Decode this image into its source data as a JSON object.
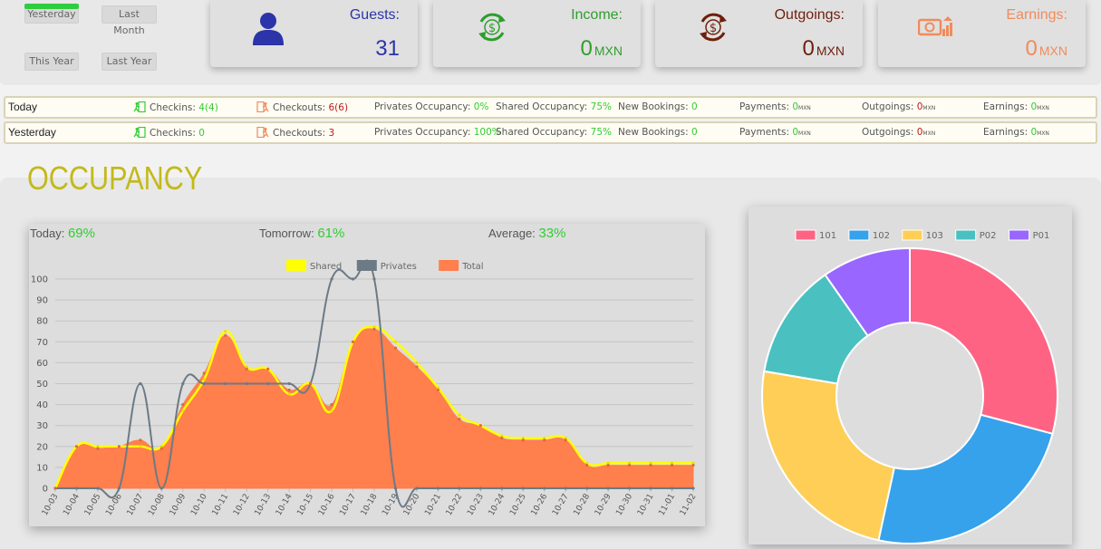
{
  "periods": {
    "yesterday": "Yesterday",
    "last_month": "Last Month",
    "this_year": "This Year",
    "last_year": "Last Year"
  },
  "cards": {
    "guests": {
      "label": "Guests:",
      "value": "31",
      "icon": "user-icon",
      "color": "#2b34a8"
    },
    "income": {
      "label": "Income:",
      "value": "0",
      "unit": "MXN",
      "icon": "dollar-cycle-icon",
      "color": "#2e9e2e"
    },
    "outgoings": {
      "label": "Outgoings:",
      "value": "0",
      "unit": "MXN",
      "icon": "dollar-cycle-icon",
      "color": "#6e1f0c"
    },
    "earnings": {
      "label": "Earnings:",
      "value": "0",
      "unit": "MXN",
      "icon": "money-chart-icon",
      "color": "#f08b5c"
    }
  },
  "summary": [
    {
      "day": "Today",
      "checkins_label": "Checkins:",
      "checkins": "4(4)",
      "checkouts_label": "Checkouts:",
      "checkouts": "6(6)",
      "privates_label": "Privates Occupancy:",
      "privates": "0%",
      "shared_label": "Shared Occupancy:",
      "shared": "75%",
      "bookings_label": "New Bookings:",
      "bookings": "0",
      "payments_label": "Payments:",
      "payments": "0",
      "payments_unit": "MXN",
      "outgoings_label": "Outgoings:",
      "outgoings": "0",
      "outgoings_unit": "MXN",
      "earnings_label": "Earnings:",
      "earnings": "0",
      "earnings_unit": "MXN"
    },
    {
      "day": "Yesterday",
      "checkins_label": "Checkins:",
      "checkins": "0",
      "checkouts_label": "Checkouts:",
      "checkouts": "3",
      "privates_label": "Privates Occupancy:",
      "privates": "100%",
      "shared_label": "Shared Occupancy:",
      "shared": "75%",
      "bookings_label": "New Bookings:",
      "bookings": "0",
      "payments_label": "Payments:",
      "payments": "0",
      "payments_unit": "MXN",
      "outgoings_label": "Outgoings:",
      "outgoings": "0",
      "outgoings_unit": "MXN",
      "earnings_label": "Earnings:",
      "earnings": "0",
      "earnings_unit": "MXN"
    }
  ],
  "occupancy": {
    "title": "OCCUPANCY",
    "today_label": "Today:",
    "today": "69%",
    "tomorrow_label": "Tomorrow:",
    "tomorrow": "61%",
    "average_label": "Average:",
    "average": "33%"
  },
  "chart_data": [
    {
      "type": "area",
      "categories": [
        "10-03",
        "10-04",
        "10-05",
        "10-06",
        "10-07",
        "10-08",
        "10-09",
        "10-10",
        "10-11",
        "10-12",
        "10-13",
        "10-14",
        "10-15",
        "10-16",
        "10-17",
        "10-18",
        "10-19",
        "10-20",
        "10-21",
        "10-22",
        "10-23",
        "10-24",
        "10-25",
        "10-26",
        "10-27",
        "10-28",
        "10-29",
        "10-30",
        "10-31",
        "11-01",
        "11-02"
      ],
      "series": [
        {
          "name": "Shared",
          "color": "#ffff00",
          "values": [
            0,
            20,
            20,
            20,
            20,
            20,
            37,
            52,
            75,
            58,
            57,
            45,
            50,
            37,
            70,
            77,
            70,
            60,
            48,
            35,
            30,
            25,
            24,
            24,
            24,
            12,
            12,
            12,
            12,
            12,
            12
          ]
        },
        {
          "name": "Privates",
          "color": "#6c7a86",
          "values": [
            0,
            0,
            0,
            0,
            50,
            0,
            50,
            50,
            50,
            50,
            50,
            50,
            50,
            100,
            100,
            100,
            0,
            0,
            0,
            0,
            0,
            0,
            0,
            0,
            0,
            0,
            0,
            0,
            0,
            0,
            0
          ]
        },
        {
          "name": "Total",
          "color": "#ff7f4d",
          "values": [
            0,
            20,
            19,
            20,
            23,
            19,
            40,
            55,
            73,
            57,
            57,
            47,
            50,
            40,
            70,
            76,
            67,
            58,
            47,
            33,
            30,
            24,
            23,
            23,
            23,
            11,
            11,
            11,
            11,
            11,
            11
          ]
        }
      ],
      "ylim": [
        0,
        100
      ],
      "yticks": [
        0,
        10,
        20,
        30,
        40,
        50,
        60,
        70,
        80,
        90,
        100
      ],
      "legend": "top-center",
      "grid": true
    },
    {
      "type": "pie",
      "donut": true,
      "categories": [
        "101",
        "102",
        "103",
        "P02",
        "P01"
      ],
      "values": [
        30,
        25,
        25,
        13,
        10
      ],
      "colors": [
        "#ff6384",
        "#36a2eb",
        "#ffce56",
        "#4bc0c0",
        "#9966ff"
      ],
      "legend": "top-center"
    }
  ]
}
